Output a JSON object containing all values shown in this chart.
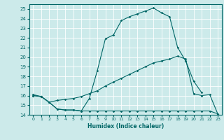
{
  "xlabel": "Humidex (Indice chaleur)",
  "xlim": [
    -0.5,
    23.5
  ],
  "ylim": [
    14,
    25.5
  ],
  "yticks": [
    14,
    15,
    16,
    17,
    18,
    19,
    20,
    21,
    22,
    23,
    24,
    25
  ],
  "xticks": [
    0,
    1,
    2,
    3,
    4,
    5,
    6,
    7,
    8,
    9,
    10,
    11,
    12,
    13,
    14,
    15,
    16,
    17,
    18,
    19,
    20,
    21,
    22,
    23
  ],
  "background_color": "#cceaea",
  "grid_color": "#ffffff",
  "line_color": "#006666",
  "line1_x": [
    0,
    1,
    2,
    3,
    4,
    5,
    6,
    7,
    8,
    9,
    10,
    11,
    12,
    13,
    14,
    15,
    16,
    17,
    18,
    19,
    20,
    21,
    22,
    23
  ],
  "line1_y": [
    16.0,
    15.9,
    15.3,
    14.6,
    14.5,
    14.5,
    14.4,
    14.4,
    14.4,
    14.4,
    14.4,
    14.4,
    14.4,
    14.4,
    14.4,
    14.4,
    14.4,
    14.4,
    14.4,
    14.4,
    14.4,
    14.4,
    14.4,
    14.1
  ],
  "line2_x": [
    0,
    1,
    2,
    3,
    4,
    5,
    6,
    7,
    8,
    9,
    10,
    11,
    12,
    13,
    14,
    15,
    16,
    17,
    18,
    19,
    20,
    21,
    22,
    23
  ],
  "line2_y": [
    16.0,
    15.9,
    15.3,
    15.5,
    15.6,
    15.7,
    15.9,
    16.2,
    16.5,
    17.0,
    17.4,
    17.8,
    18.2,
    18.6,
    19.0,
    19.4,
    19.6,
    19.8,
    20.1,
    19.8,
    16.2,
    16.0,
    16.1,
    14.1
  ],
  "line3_x": [
    0,
    1,
    2,
    3,
    4,
    5,
    6,
    7,
    8,
    9,
    10,
    11,
    12,
    13,
    14,
    15,
    16,
    17,
    18,
    19,
    20,
    21,
    22,
    23
  ],
  "line3_y": [
    16.1,
    15.9,
    15.3,
    14.6,
    14.5,
    14.5,
    14.4,
    15.7,
    18.6,
    21.9,
    22.3,
    23.8,
    24.2,
    24.5,
    24.8,
    25.1,
    24.6,
    24.2,
    21.0,
    19.6,
    17.5,
    16.3,
    null,
    null
  ]
}
